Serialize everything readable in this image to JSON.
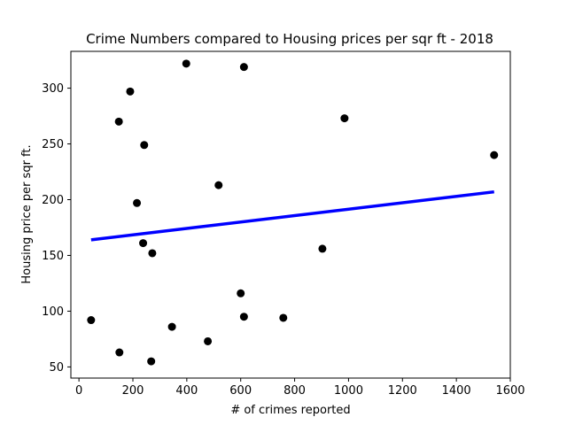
{
  "chart_data": {
    "type": "scatter",
    "title": "Crime Numbers compared to Housing prices per sqr ft - 2018",
    "xlabel": "# of crimes reported",
    "ylabel": "Housing price per sqr ft.",
    "xlim": [
      -30,
      1600
    ],
    "ylim": [
      40,
      333
    ],
    "xticks": [
      0,
      200,
      400,
      600,
      800,
      1000,
      1200,
      1400,
      1600
    ],
    "yticks": [
      50,
      100,
      150,
      200,
      250,
      300
    ],
    "grid": false,
    "points": {
      "color": "#000000",
      "x": [
        45,
        150,
        148,
        190,
        215,
        238,
        242,
        268,
        272,
        345,
        398,
        478,
        518,
        600,
        612,
        612,
        758,
        903,
        985,
        1540
      ],
      "y": [
        92,
        63,
        270,
        297,
        197,
        161,
        249,
        55,
        152,
        86,
        322,
        73,
        213,
        116,
        95,
        319,
        94,
        156,
        273,
        240
      ]
    },
    "trend_line": {
      "color": "#0000ff",
      "x": [
        45,
        1540
      ],
      "y": [
        164,
        207
      ]
    }
  }
}
